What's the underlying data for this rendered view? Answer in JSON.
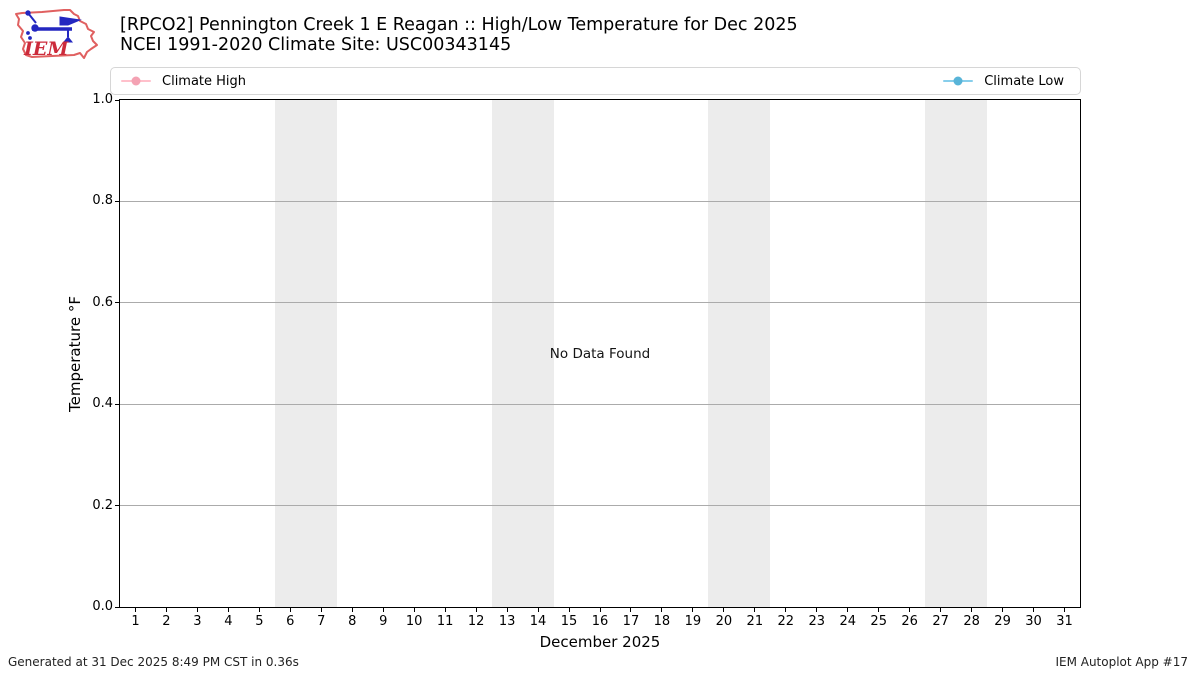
{
  "header": {
    "title": "[RPCO2] Pennington Creek 1 E Reagan :: High/Low Temperature for Dec 2025",
    "subtitle": "NCEI 1991-2020 Climate Site: USC00343145",
    "logo_text": "IEM"
  },
  "legend": {
    "items": [
      {
        "id": "climate-high",
        "label": "Climate High",
        "line_color": "#ffc0cb",
        "marker_color": "#f4a2b3"
      },
      {
        "id": "climate-low",
        "label": "Climate Low",
        "line_color": "#87ceeb",
        "marker_color": "#58b4d8"
      }
    ]
  },
  "chart_data": {
    "type": "line",
    "title": "[RPCO2] Pennington Creek 1 E Reagan :: High/Low Temperature for Dec 2025",
    "subtitle": "NCEI 1991-2020 Climate Site: USC00343145",
    "xlabel": "December 2025",
    "ylabel": "Temperature °F",
    "xlim": [
      0.5,
      31.5
    ],
    "ylim": [
      0.0,
      1.0
    ],
    "x_ticks": [
      1,
      2,
      3,
      4,
      5,
      6,
      7,
      8,
      9,
      10,
      11,
      12,
      13,
      14,
      15,
      16,
      17,
      18,
      19,
      20,
      21,
      22,
      23,
      24,
      25,
      26,
      27,
      28,
      29,
      30,
      31
    ],
    "y_ticks": [
      0.0,
      0.2,
      0.4,
      0.6,
      0.8,
      1.0
    ],
    "y_tick_labels": [
      "0.0",
      "0.2",
      "0.4",
      "0.6",
      "0.8",
      "1.0"
    ],
    "grid": "horizontal gridlines at y ticks",
    "weekend_shading_x_ranges": [
      [
        5.5,
        7.5
      ],
      [
        12.5,
        14.5
      ],
      [
        19.5,
        21.5
      ],
      [
        26.5,
        28.5
      ]
    ],
    "weekend_band_color": "#ececec",
    "grid_color": "#ababab",
    "series": [
      {
        "name": "Climate High",
        "color": "#ffc0cb",
        "values": []
      },
      {
        "name": "Climate Low",
        "color": "#87ceeb",
        "values": []
      }
    ],
    "no_data_label": "No Data Found",
    "legend_position": "top row, entries at far left and far right"
  },
  "footer": {
    "generated": "Generated at 31 Dec 2025 8:49 PM CST in 0.36s",
    "app": "IEM Autoplot App #17"
  }
}
